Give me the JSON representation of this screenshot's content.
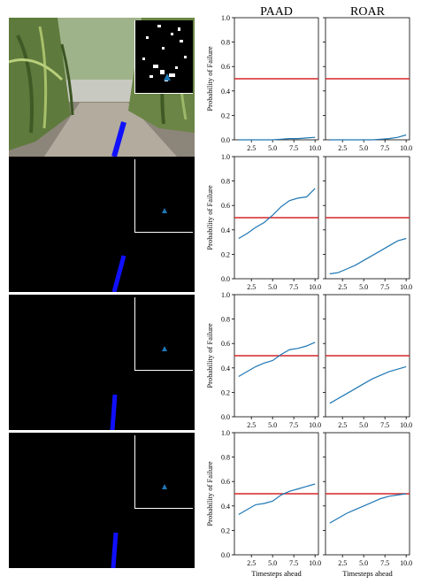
{
  "columns": [
    "PAAD",
    "ROAR"
  ],
  "colors": {
    "line": "#1f77b4",
    "threshold": "#d62728",
    "axis": "#000000",
    "path": "#1010ff",
    "marker": "#1f77b4"
  },
  "chart_data": {
    "type": "line",
    "grid": "2x4 small multiples",
    "ylabel": "Probability of Failure",
    "xlabel": "Timesteps ahead",
    "x": [
      1,
      2,
      3,
      4,
      5,
      6,
      7,
      8,
      9,
      10
    ],
    "xlim": [
      0.5,
      10.4
    ],
    "ylim": [
      0,
      1.0
    ],
    "xticks": [
      "2.5",
      "5.0",
      "7.5",
      "10.0"
    ],
    "yticks": [
      "0.0",
      "0.2",
      "0.4",
      "0.6",
      "0.8",
      "1.0"
    ],
    "threshold": 0.5,
    "rows": [
      {
        "paad": [
          0.0,
          0.0,
          0.0,
          0.0,
          0.0,
          0.005,
          0.01,
          0.01,
          0.015,
          0.02
        ],
        "roar": [
          0.0,
          0.0,
          0.0,
          0.0,
          0.0,
          0.0,
          0.005,
          0.01,
          0.02,
          0.04
        ]
      },
      {
        "paad": [
          0.33,
          0.37,
          0.42,
          0.46,
          0.52,
          0.59,
          0.64,
          0.66,
          0.67,
          0.74
        ],
        "roar": [
          0.04,
          0.05,
          0.08,
          0.11,
          0.15,
          0.19,
          0.23,
          0.27,
          0.31,
          0.33
        ]
      },
      {
        "paad": [
          0.33,
          0.37,
          0.41,
          0.44,
          0.46,
          0.51,
          0.55,
          0.56,
          0.58,
          0.61
        ],
        "roar": [
          0.11,
          0.15,
          0.19,
          0.23,
          0.27,
          0.31,
          0.34,
          0.37,
          0.39,
          0.41
        ]
      },
      {
        "paad": [
          0.33,
          0.37,
          0.41,
          0.42,
          0.44,
          0.49,
          0.52,
          0.54,
          0.56,
          0.58
        ],
        "roar": [
          0.26,
          0.3,
          0.34,
          0.37,
          0.4,
          0.43,
          0.46,
          0.48,
          0.49,
          0.5
        ]
      }
    ]
  }
}
